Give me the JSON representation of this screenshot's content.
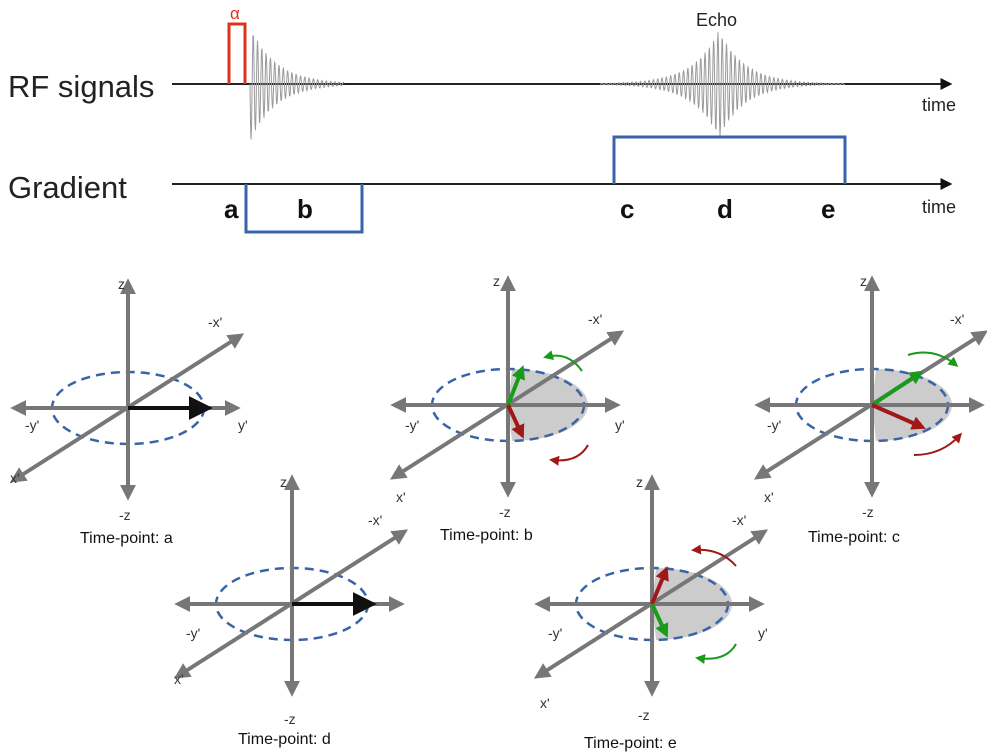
{
  "colors": {
    "axis": "#777777",
    "pulse": "#e03020",
    "gradient": "#3a64a8",
    "signal": "#9a9a9a",
    "ellipse": "#3a64a8",
    "wedge": "#cccccc",
    "spin_fast": "#1a9a1a",
    "spin_slow": "#a01818",
    "magnetization": "#000000"
  },
  "pulse_sequence": {
    "rf_label": "RF signals",
    "gradient_label": "Gradient",
    "time_label": "time",
    "alpha_label": "α",
    "echo_label": "Echo",
    "time_points": [
      "a",
      "b",
      "c",
      "d",
      "e"
    ]
  },
  "axis_labels": {
    "z": "z",
    "minus_z": "-z",
    "x_prime": "x'",
    "minus_x_prime": "-x'",
    "y_prime": "y'",
    "minus_y_prime": "-y'"
  },
  "frames": [
    {
      "id": "a",
      "caption": "Time-point: a",
      "state": "aligned"
    },
    {
      "id": "b",
      "caption": "Time-point: b",
      "state": "dephasing"
    },
    {
      "id": "c",
      "caption": "Time-point: c",
      "state": "reversed"
    },
    {
      "id": "d",
      "caption": "Time-point: d",
      "state": "aligned"
    },
    {
      "id": "e",
      "caption": "Time-point: e",
      "state": "dephasing"
    }
  ]
}
